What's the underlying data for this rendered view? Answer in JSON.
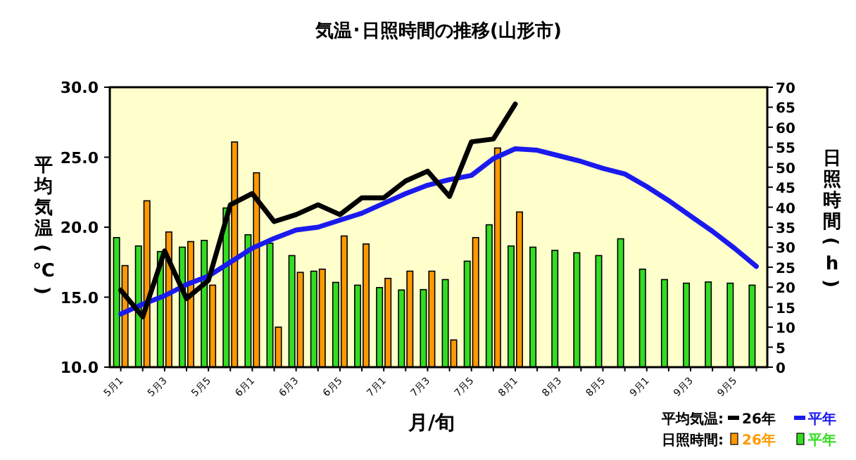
{
  "chart_data": {
    "type": "bar",
    "title": "気温･日照時間の推移(山形市)",
    "xlabel": "月/旬",
    "ylabel": "平均気温(℃)",
    "y2label": "日照時間(h)",
    "categories": [
      "5月1",
      null,
      "5月3",
      null,
      "5月5",
      null,
      "6月1",
      null,
      "6月3",
      null,
      "6月5",
      null,
      "7月1",
      null,
      "7月3",
      null,
      "7月5",
      null,
      "8月1",
      null,
      "8月3",
      null,
      "8月5",
      null,
      "9月1",
      null,
      "9月3",
      null,
      "9月5",
      null
    ],
    "series": [
      {
        "name": "平年",
        "axis": "y2",
        "color": "#33dd22",
        "values": [
          32.4,
          30.3,
          28.9,
          30.0,
          31.7,
          39.8,
          33.1,
          31.0,
          27.9,
          24.0,
          21.2,
          20.5,
          19.9,
          19.3,
          19.4,
          21.9,
          26.5,
          35.6,
          30.3,
          30.0,
          29.2,
          28.6,
          27.9,
          32.1,
          24.5,
          21.9,
          21.0,
          21.3,
          21.0,
          20.5
        ]
      },
      {
        "name": "26年",
        "axis": "y2",
        "color": "#ff9900",
        "values": [
          25.4,
          41.6,
          33.8,
          31.4,
          20.5,
          56.3,
          48.6,
          10.0,
          23.7,
          24.5,
          32.8,
          30.8,
          22.2,
          24.0,
          24.0,
          6.8,
          32.4,
          54.8,
          38.8,
          null,
          null,
          null,
          null,
          null,
          null,
          null,
          null,
          null,
          null,
          null
        ]
      },
      {
        "name": "平年",
        "type": "line",
        "axis": "y",
        "color": "#1a1aee",
        "values": [
          13.8,
          14.5,
          15.1,
          15.9,
          16.5,
          17.5,
          18.5,
          19.2,
          19.8,
          20.0,
          20.5,
          21.0,
          21.7,
          22.4,
          23.0,
          23.4,
          23.7,
          24.9,
          25.6,
          25.5,
          25.1,
          24.7,
          24.2,
          23.8,
          22.9,
          21.9,
          20.8,
          19.7,
          18.5,
          17.2
        ]
      },
      {
        "name": "26年",
        "type": "line",
        "axis": "y",
        "color": "#000000",
        "values": [
          15.5,
          13.6,
          18.3,
          14.9,
          16.2,
          21.6,
          22.4,
          20.4,
          20.9,
          21.6,
          20.9,
          22.1,
          22.1,
          23.3,
          24.0,
          22.2,
          26.1,
          26.3,
          28.8,
          null,
          null,
          null,
          null,
          null,
          null,
          null,
          null,
          null,
          null,
          null
        ]
      }
    ],
    "ylim": [
      10,
      30
    ],
    "yticks": [
      {
        "value": 10,
        "label": "10.0"
      },
      {
        "value": 15,
        "label": "15.0"
      },
      {
        "value": 20,
        "label": "20.0"
      },
      {
        "value": 25,
        "label": "25.0"
      },
      {
        "value": 30,
        "label": "30.0"
      }
    ],
    "y2lim": [
      0,
      70
    ],
    "y2ticks": [
      0,
      5,
      10,
      15,
      20,
      25,
      30,
      35,
      40,
      45,
      50,
      55,
      60,
      65,
      70
    ],
    "annotations": [
      "平均気温:",
      "日照時間:"
    ],
    "legend": "bottom right"
  }
}
